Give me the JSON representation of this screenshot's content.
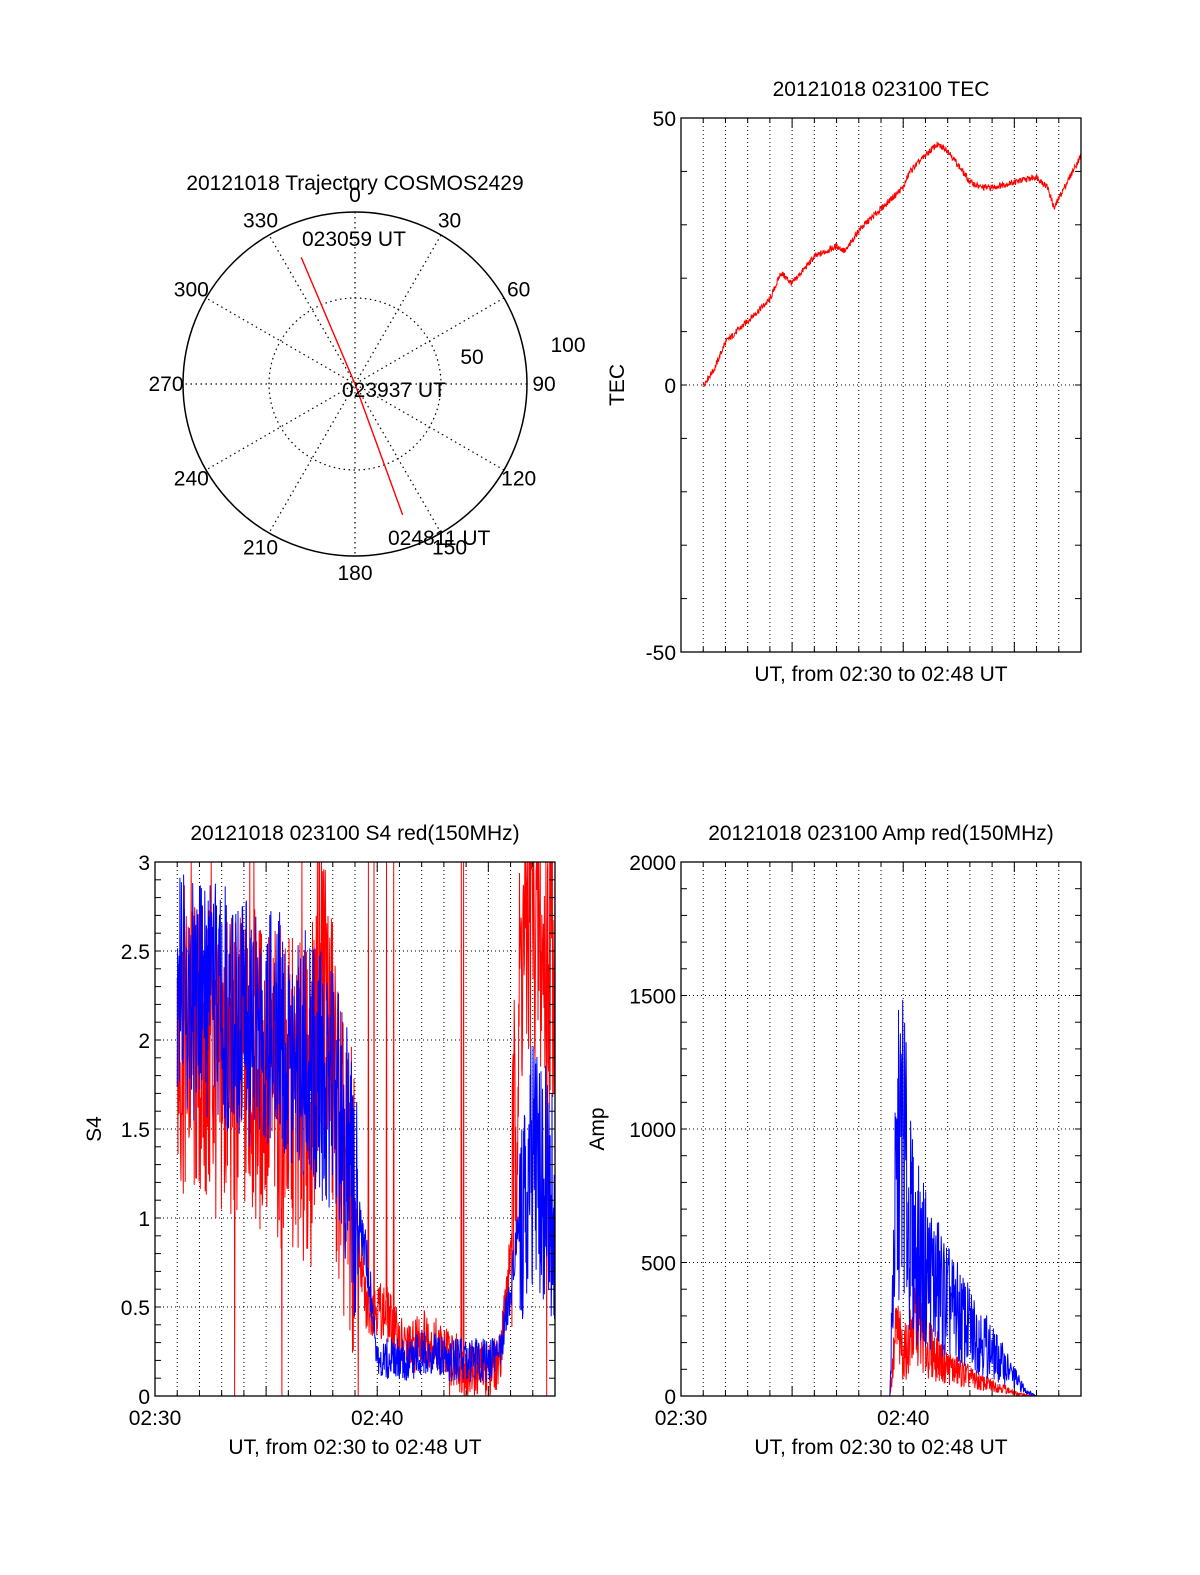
{
  "colors": {
    "red": "#ff0000",
    "blue": "#0000ff",
    "axis": "#000000",
    "grid": "#000000",
    "background": "#ffffff"
  },
  "chart_data": [
    {
      "id": "trajectory",
      "type": "polar",
      "title": "20121018 Trajectory COSMOS2429",
      "azimuth_labels": [
        "0",
        "30",
        "60",
        "90",
        "120",
        "150",
        "180",
        "210",
        "240",
        "270",
        "300",
        "330"
      ],
      "radial_labels": [
        "50",
        "100"
      ],
      "radial_ring_values": [
        50,
        100
      ],
      "grid": true,
      "series": [
        {
          "color": "red",
          "points": [
            {
              "azimuth": 337,
              "radius": 80,
              "time": "023059 UT"
            },
            {
              "azimuth": 0,
              "radius": 0,
              "time": "023937 UT"
            },
            {
              "azimuth": 160,
              "radius": 81,
              "time": "024811 UT"
            }
          ]
        }
      ],
      "annotations": [
        "023059 UT",
        "023937 UT",
        "024811 UT"
      ]
    },
    {
      "id": "tec",
      "type": "line",
      "title": "20121018 023100 TEC",
      "xlabel": "UT, from 02:30 to 02:48 UT",
      "ylabel": "TEC",
      "xlim": [
        0,
        18
      ],
      "ylim": [
        -50,
        50
      ],
      "x_ticks": [],
      "y_ticks": [
        "-50",
        "0",
        "50"
      ],
      "y_tick_values": [
        -50,
        0,
        50
      ],
      "grid": true,
      "series": [
        {
          "color": "red",
          "x": [
            1,
            1.5,
            2,
            3,
            4,
            4.5,
            5,
            6,
            7,
            7.4,
            8,
            9,
            10,
            10.3,
            11,
            11.5,
            12,
            12.5,
            13,
            13.5,
            14,
            15,
            16,
            16.5,
            16.8,
            17,
            17.5,
            18
          ],
          "y": [
            0,
            3,
            8,
            12,
            16,
            21,
            19,
            24,
            26,
            25,
            29,
            33,
            37,
            40,
            43,
            45,
            44,
            41,
            38,
            37,
            37,
            38,
            39,
            37,
            33,
            35,
            39,
            43
          ]
        }
      ]
    },
    {
      "id": "s4",
      "type": "line",
      "title": "20121018 023100 S4 red(150MHz)",
      "xlabel": "UT, from 02:30 to 02:48 UT",
      "ylabel": "S4",
      "xlim": [
        0,
        18
      ],
      "ylim": [
        0,
        3
      ],
      "x_ticks": [
        "02:30",
        "02:40"
      ],
      "x_tick_values": [
        0,
        10
      ],
      "y_ticks": [
        "0",
        "0.5",
        "1",
        "1.5",
        "2",
        "2.5",
        "3"
      ],
      "y_tick_values": [
        0,
        0.5,
        1,
        1.5,
        2,
        2.5,
        3
      ],
      "grid": true,
      "series": [
        {
          "color": "red",
          "x": [
            1,
            2,
            3,
            4,
            5,
            6,
            7,
            7.5,
            8,
            8.5,
            9,
            9.5,
            10,
            10.5,
            11,
            11.5,
            12,
            12.5,
            13,
            13.5,
            14,
            14.5,
            15,
            15.5,
            16,
            16.5,
            17,
            17.5,
            18
          ],
          "y": [
            2.0,
            1.9,
            1.8,
            1.85,
            1.8,
            1.7,
            1.6,
            2.5,
            1.8,
            1.2,
            1.0,
            0.5,
            0.5,
            0.45,
            0.3,
            0.25,
            0.35,
            0.3,
            0.25,
            0.2,
            0.15,
            0.15,
            0.15,
            0.2,
            0.8,
            2.5,
            2.8,
            2.4,
            2.6
          ]
        },
        {
          "color": "blue",
          "x": [
            1,
            2,
            3,
            4,
            5,
            6,
            7,
            7.5,
            8,
            8.5,
            9,
            9.5,
            10,
            10.5,
            11,
            11.5,
            12,
            12.5,
            13,
            13.5,
            14,
            14.5,
            15,
            15.5,
            16,
            16.5,
            17,
            17.5,
            18
          ],
          "y": [
            2.3,
            2.2,
            2.2,
            2.1,
            2.1,
            2.0,
            1.9,
            1.8,
            1.7,
            1.5,
            1.1,
            0.8,
            0.25,
            0.2,
            0.2,
            0.2,
            0.25,
            0.25,
            0.2,
            0.2,
            0.2,
            0.2,
            0.2,
            0.25,
            0.6,
            1.1,
            1.3,
            1.2,
            1.1
          ]
        }
      ]
    },
    {
      "id": "amp",
      "type": "line",
      "title": "20121018 023100 Amp red(150MHz)",
      "xlabel": "UT, from 02:30 to 02:48 UT",
      "ylabel": "Amp",
      "xlim": [
        0,
        18
      ],
      "ylim": [
        0,
        2000
      ],
      "x_ticks": [
        "02:30",
        "02:40"
      ],
      "x_tick_values": [
        0,
        10
      ],
      "y_ticks": [
        "0",
        "500",
        "1000",
        "1500",
        "2000"
      ],
      "y_tick_values": [
        0,
        500,
        1000,
        1500,
        2000
      ],
      "grid": true,
      "series": [
        {
          "color": "red",
          "x": [
            1,
            4,
            8,
            9.4,
            9.7,
            10,
            10.3,
            10.6,
            11,
            11.5,
            12,
            12.5,
            13,
            13.5,
            14,
            14.5,
            15,
            16,
            17,
            18
          ],
          "y": [
            0,
            0,
            0,
            0,
            250,
            150,
            200,
            300,
            180,
            150,
            110,
            90,
            70,
            50,
            40,
            30,
            10,
            0,
            0,
            0
          ]
        },
        {
          "color": "blue",
          "x": [
            1,
            4,
            8,
            9.4,
            9.6,
            9.8,
            10,
            10.2,
            10.5,
            11,
            11.5,
            12,
            12.5,
            13,
            13.5,
            14,
            14.5,
            15,
            15.5,
            16,
            17,
            18
          ],
          "y": [
            0,
            0,
            0,
            0,
            600,
            900,
            1000,
            700,
            550,
            480,
            420,
            350,
            300,
            250,
            220,
            160,
            120,
            70,
            20,
            0,
            0,
            0
          ]
        }
      ]
    }
  ]
}
